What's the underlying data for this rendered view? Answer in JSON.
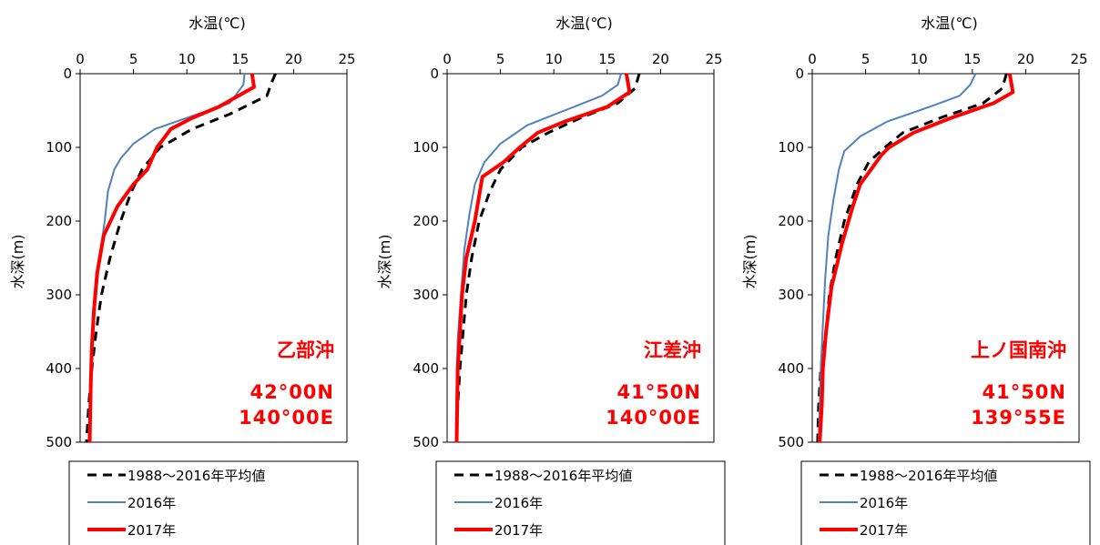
{
  "chart_data": [
    {
      "type": "line",
      "title": "水温(℃)",
      "ylabel": "水深(m)",
      "xlim": [
        0,
        25
      ],
      "ylim": [
        0,
        500
      ],
      "y_inverted": true,
      "x_axis_position": "top",
      "xticks": [
        "0",
        "5",
        "10",
        "15",
        "20",
        "25"
      ],
      "yticks": [
        "0",
        "100",
        "200",
        "300",
        "400",
        "500"
      ],
      "station": "乙部沖",
      "coords": [
        "42°00N",
        "140°00E"
      ],
      "legend_position": "bottom",
      "series": [
        {
          "name": "1988～2016年平均値",
          "color": "#000000",
          "dash": true,
          "points": [
            [
              18.3,
              0
            ],
            [
              18.0,
              10
            ],
            [
              17.5,
              30
            ],
            [
              14.0,
              55
            ],
            [
              10.5,
              75
            ],
            [
              7.5,
              100
            ],
            [
              5.8,
              130
            ],
            [
              4.8,
              160
            ],
            [
              3.8,
              200
            ],
            [
              2.8,
              250
            ],
            [
              2.0,
              300
            ],
            [
              1.5,
              350
            ],
            [
              1.1,
              400
            ],
            [
              0.8,
              450
            ],
            [
              0.6,
              500
            ]
          ]
        },
        {
          "name": "2016年",
          "color": "#4f81bd",
          "dash": false,
          "points": [
            [
              15.4,
              0
            ],
            [
              15.3,
              15
            ],
            [
              14.0,
              40
            ],
            [
              11.0,
              55
            ],
            [
              7.0,
              75
            ],
            [
              5.0,
              95
            ],
            [
              3.8,
              115
            ],
            [
              3.2,
              130
            ],
            [
              2.6,
              160
            ],
            [
              2.3,
              200
            ],
            [
              1.8,
              250
            ],
            [
              1.5,
              300
            ],
            [
              1.2,
              350
            ],
            [
              1.0,
              400
            ],
            [
              0.9,
              450
            ],
            [
              0.8,
              500
            ]
          ]
        },
        {
          "name": "2017年",
          "color": "#ff0000",
          "dash": false,
          "points": [
            [
              16.1,
              0
            ],
            [
              16.3,
              18
            ],
            [
              13.0,
              45
            ],
            [
              10.5,
              60
            ],
            [
              8.5,
              75
            ],
            [
              7.2,
              100
            ],
            [
              6.3,
              130
            ],
            [
              5.0,
              150
            ],
            [
              3.5,
              180
            ],
            [
              2.2,
              220
            ],
            [
              1.6,
              270
            ],
            [
              1.3,
              320
            ],
            [
              1.1,
              370
            ],
            [
              1.0,
              420
            ],
            [
              0.9,
              500
            ]
          ]
        }
      ]
    },
    {
      "type": "line",
      "title": "水温(℃)",
      "ylabel": "水深(m)",
      "xlim": [
        0,
        25
      ],
      "ylim": [
        0,
        500
      ],
      "y_inverted": true,
      "x_axis_position": "top",
      "xticks": [
        "0",
        "5",
        "10",
        "15",
        "20",
        "25"
      ],
      "yticks": [
        "0",
        "100",
        "200",
        "300",
        "400",
        "500"
      ],
      "station": "江差沖",
      "coords": [
        "41°50N",
        "140°00E"
      ],
      "legend_position": "bottom",
      "series": [
        {
          "name": "1988～2016年平均値",
          "color": "#000000",
          "dash": true,
          "points": [
            [
              18.0,
              0
            ],
            [
              17.6,
              20
            ],
            [
              16.0,
              40
            ],
            [
              12.5,
              60
            ],
            [
              9.5,
              80
            ],
            [
              7.0,
              100
            ],
            [
              5.0,
              130
            ],
            [
              4.0,
              160
            ],
            [
              3.0,
              200
            ],
            [
              2.3,
              250
            ],
            [
              1.8,
              300
            ],
            [
              1.5,
              350
            ],
            [
              1.2,
              400
            ],
            [
              1.0,
              450
            ],
            [
              0.9,
              500
            ]
          ]
        },
        {
          "name": "2016年",
          "color": "#4f81bd",
          "dash": false,
          "points": [
            [
              16.3,
              0
            ],
            [
              16.0,
              15
            ],
            [
              14.5,
              30
            ],
            [
              11.0,
              50
            ],
            [
              7.5,
              70
            ],
            [
              5.0,
              95
            ],
            [
              3.5,
              120
            ],
            [
              2.6,
              150
            ],
            [
              2.1,
              190
            ],
            [
              1.6,
              240
            ],
            [
              1.3,
              300
            ],
            [
              1.0,
              360
            ],
            [
              0.9,
              420
            ],
            [
              0.8,
              500
            ]
          ]
        },
        {
          "name": "2017年",
          "color": "#ff0000",
          "dash": false,
          "points": [
            [
              16.8,
              0
            ],
            [
              17.1,
              25
            ],
            [
              15.0,
              45
            ],
            [
              11.0,
              65
            ],
            [
              8.5,
              80
            ],
            [
              6.8,
              100
            ],
            [
              5.3,
              120
            ],
            [
              3.3,
              140
            ],
            [
              2.6,
              200
            ],
            [
              1.8,
              250
            ],
            [
              1.4,
              300
            ],
            [
              1.2,
              350
            ],
            [
              1.0,
              400
            ],
            [
              0.9,
              500
            ]
          ]
        }
      ]
    },
    {
      "type": "line",
      "title": "水温(℃)",
      "ylabel": "水深(m)",
      "xlim": [
        0,
        25
      ],
      "ylim": [
        0,
        500
      ],
      "y_inverted": true,
      "x_axis_position": "top",
      "xticks": [
        "0",
        "5",
        "10",
        "15",
        "20",
        "25"
      ],
      "yticks": [
        "0",
        "100",
        "200",
        "300",
        "400",
        "500"
      ],
      "station": "上ノ国南沖",
      "coords": [
        "41°50N",
        "139°55E"
      ],
      "legend_position": "bottom",
      "series": [
        {
          "name": "1988～2016年平均値",
          "color": "#000000",
          "dash": true,
          "points": [
            [
              18.2,
              0
            ],
            [
              17.8,
              20
            ],
            [
              16.0,
              40
            ],
            [
              12.0,
              60
            ],
            [
              8.5,
              80
            ],
            [
              6.8,
              100
            ],
            [
              5.3,
              120
            ],
            [
              4.2,
              150
            ],
            [
              3.0,
              200
            ],
            [
              2.2,
              250
            ],
            [
              1.6,
              300
            ],
            [
              1.3,
              350
            ],
            [
              0.8,
              400
            ],
            [
              0.6,
              450
            ],
            [
              0.5,
              500
            ]
          ]
        },
        {
          "name": "2016年",
          "color": "#4f81bd",
          "dash": false,
          "points": [
            [
              15.3,
              0
            ],
            [
              14.8,
              15
            ],
            [
              13.8,
              30
            ],
            [
              11.0,
              45
            ],
            [
              7.0,
              65
            ],
            [
              4.5,
              85
            ],
            [
              3.0,
              105
            ],
            [
              2.5,
              130
            ],
            [
              2.0,
              170
            ],
            [
              1.5,
              220
            ],
            [
              1.2,
              280
            ],
            [
              1.0,
              340
            ],
            [
              0.8,
              400
            ],
            [
              0.7,
              450
            ],
            [
              0.6,
              500
            ]
          ]
        },
        {
          "name": "2017年",
          "color": "#ff0000",
          "dash": false,
          "points": [
            [
              18.5,
              0
            ],
            [
              18.8,
              25
            ],
            [
              17.0,
              40
            ],
            [
              13.0,
              60
            ],
            [
              9.5,
              80
            ],
            [
              7.2,
              100
            ],
            [
              6.5,
              110
            ],
            [
              5.5,
              130
            ],
            [
              4.5,
              150
            ],
            [
              3.8,
              180
            ],
            [
              2.8,
              230
            ],
            [
              1.8,
              290
            ],
            [
              1.3,
              350
            ],
            [
              1.0,
              400
            ],
            [
              0.9,
              450
            ],
            [
              0.7,
              500
            ]
          ]
        }
      ]
    }
  ]
}
